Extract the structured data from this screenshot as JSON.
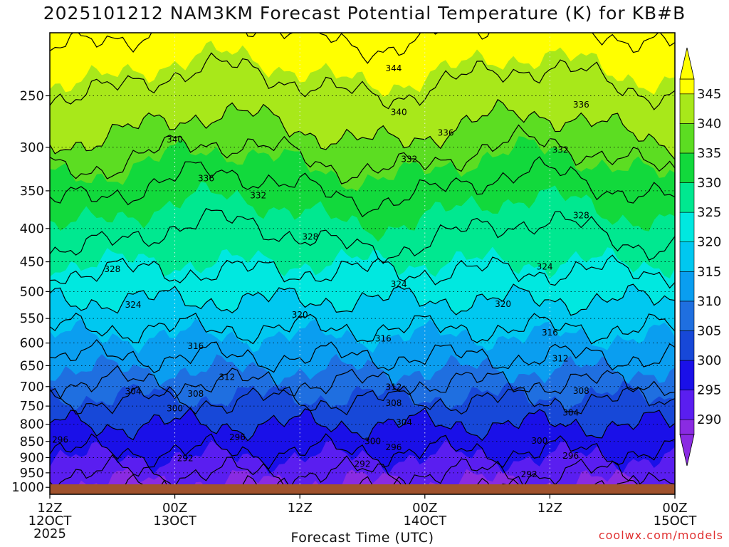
{
  "chart_data": {
    "type": "heatmap",
    "title": "2025101212 NAM3KM Forecast Potential Temperature (K) for KB#B",
    "xlabel": "Forecast Time (UTC)",
    "ylabel": "",
    "credit": "coolwx.com/models",
    "x_ticks": [
      {
        "t": 0,
        "line1": "12Z",
        "line2": "12OCT",
        "line3": "2025"
      },
      {
        "t": 12,
        "line1": "00Z",
        "line2": "13OCT"
      },
      {
        "t": 24,
        "line1": "12Z"
      },
      {
        "t": 36,
        "line1": "00Z",
        "line2": "14OCT"
      },
      {
        "t": 48,
        "line1": "12Z"
      },
      {
        "t": 60,
        "line1": "00Z",
        "line2": "15OCT"
      }
    ],
    "xlim": [
      0,
      60
    ],
    "y_ticks": [
      250,
      300,
      350,
      400,
      450,
      500,
      550,
      600,
      650,
      700,
      750,
      800,
      850,
      900,
      950,
      1000
    ],
    "ylim": [
      200,
      1025
    ],
    "y_scale": "log-pressure",
    "colorbar": {
      "ticks": [
        345,
        340,
        335,
        330,
        325,
        320,
        315,
        310,
        305,
        300,
        295,
        290
      ],
      "range": [
        287.5,
        347.5
      ],
      "bins": [
        {
          "lo": 285,
          "hi": 290,
          "color": "#8a2be2"
        },
        {
          "lo": 290,
          "hi": 295,
          "color": "#5a1ef0"
        },
        {
          "lo": 295,
          "hi": 300,
          "color": "#1a10e8"
        },
        {
          "lo": 300,
          "hi": 305,
          "color": "#1748d8"
        },
        {
          "lo": 305,
          "hi": 310,
          "color": "#1f6fe0"
        },
        {
          "lo": 310,
          "hi": 315,
          "color": "#0a9ef0"
        },
        {
          "lo": 315,
          "hi": 320,
          "color": "#00c8f0"
        },
        {
          "lo": 320,
          "hi": 325,
          "color": "#00e8e0"
        },
        {
          "lo": 325,
          "hi": 330,
          "color": "#00e890"
        },
        {
          "lo": 330,
          "hi": 335,
          "color": "#12d93c"
        },
        {
          "lo": 335,
          "hi": 340,
          "color": "#5cdd22"
        },
        {
          "lo": 340,
          "hi": 345,
          "color": "#a8e81a"
        },
        {
          "lo": 345,
          "hi": 350,
          "color": "#ffff00"
        }
      ]
    },
    "contour_interval": 4,
    "profile_surface_hpa": [
      {
        "theta": 288,
        "p": 1012
      },
      {
        "theta": 292,
        "p": 950
      },
      {
        "theta": 296,
        "p": 880
      },
      {
        "theta": 300,
        "p": 800
      },
      {
        "theta": 304,
        "p": 735
      },
      {
        "theta": 308,
        "p": 690
      },
      {
        "theta": 312,
        "p": 630
      },
      {
        "theta": 316,
        "p": 570
      },
      {
        "theta": 320,
        "p": 515
      },
      {
        "theta": 324,
        "p": 465
      },
      {
        "theta": 328,
        "p": 410
      },
      {
        "theta": 332,
        "p": 345
      },
      {
        "theta": 336,
        "p": 310
      },
      {
        "theta": 340,
        "p": 280
      },
      {
        "theta": 344,
        "p": 238
      },
      {
        "theta": 348,
        "p": 200
      }
    ],
    "contour_labels": [
      {
        "text": "344",
        "t": 33,
        "p": 227
      },
      {
        "text": "340",
        "t": 33.5,
        "p": 265
      },
      {
        "text": "340",
        "t": 12,
        "p": 292
      },
      {
        "text": "336",
        "t": 38,
        "p": 285
      },
      {
        "text": "336",
        "t": 51,
        "p": 258
      },
      {
        "text": "336",
        "t": 15,
        "p": 335
      },
      {
        "text": "332",
        "t": 20,
        "p": 356
      },
      {
        "text": "332",
        "t": 34.5,
        "p": 313
      },
      {
        "text": "332",
        "t": 49,
        "p": 303
      },
      {
        "text": "328",
        "t": 51,
        "p": 382
      },
      {
        "text": "328",
        "t": 25,
        "p": 412
      },
      {
        "text": "328",
        "t": 6,
        "p": 462
      },
      {
        "text": "324",
        "t": 47.5,
        "p": 458
      },
      {
        "text": "324",
        "t": 33.5,
        "p": 487
      },
      {
        "text": "324",
        "t": 8,
        "p": 524
      },
      {
        "text": "320",
        "t": 43.5,
        "p": 523
      },
      {
        "text": "320",
        "t": 24,
        "p": 543
      },
      {
        "text": "316",
        "t": 48,
        "p": 578
      },
      {
        "text": "316",
        "t": 32,
        "p": 591
      },
      {
        "text": "316",
        "t": 14,
        "p": 607
      },
      {
        "text": "312",
        "t": 49,
        "p": 634
      },
      {
        "text": "312",
        "t": 17,
        "p": 677
      },
      {
        "text": "312",
        "t": 33,
        "p": 701
      },
      {
        "text": "308",
        "t": 51,
        "p": 711
      },
      {
        "text": "308",
        "t": 14,
        "p": 718
      },
      {
        "text": "308",
        "t": 33,
        "p": 742
      },
      {
        "text": "304",
        "t": 8,
        "p": 712
      },
      {
        "text": "304",
        "t": 50,
        "p": 768
      },
      {
        "text": "304",
        "t": 34,
        "p": 795
      },
      {
        "text": "300",
        "t": 12,
        "p": 756
      },
      {
        "text": "300",
        "t": 31,
        "p": 849
      },
      {
        "text": "300",
        "t": 47,
        "p": 848
      },
      {
        "text": "296",
        "t": 18,
        "p": 838
      },
      {
        "text": "296",
        "t": 33,
        "p": 868
      },
      {
        "text": "296",
        "t": 50,
        "p": 895
      },
      {
        "text": "296",
        "t": 1,
        "p": 845
      },
      {
        "text": "292",
        "t": 13,
        "p": 902
      },
      {
        "text": "292",
        "t": 30,
        "p": 921
      },
      {
        "text": "292",
        "t": 46,
        "p": 955
      }
    ]
  }
}
